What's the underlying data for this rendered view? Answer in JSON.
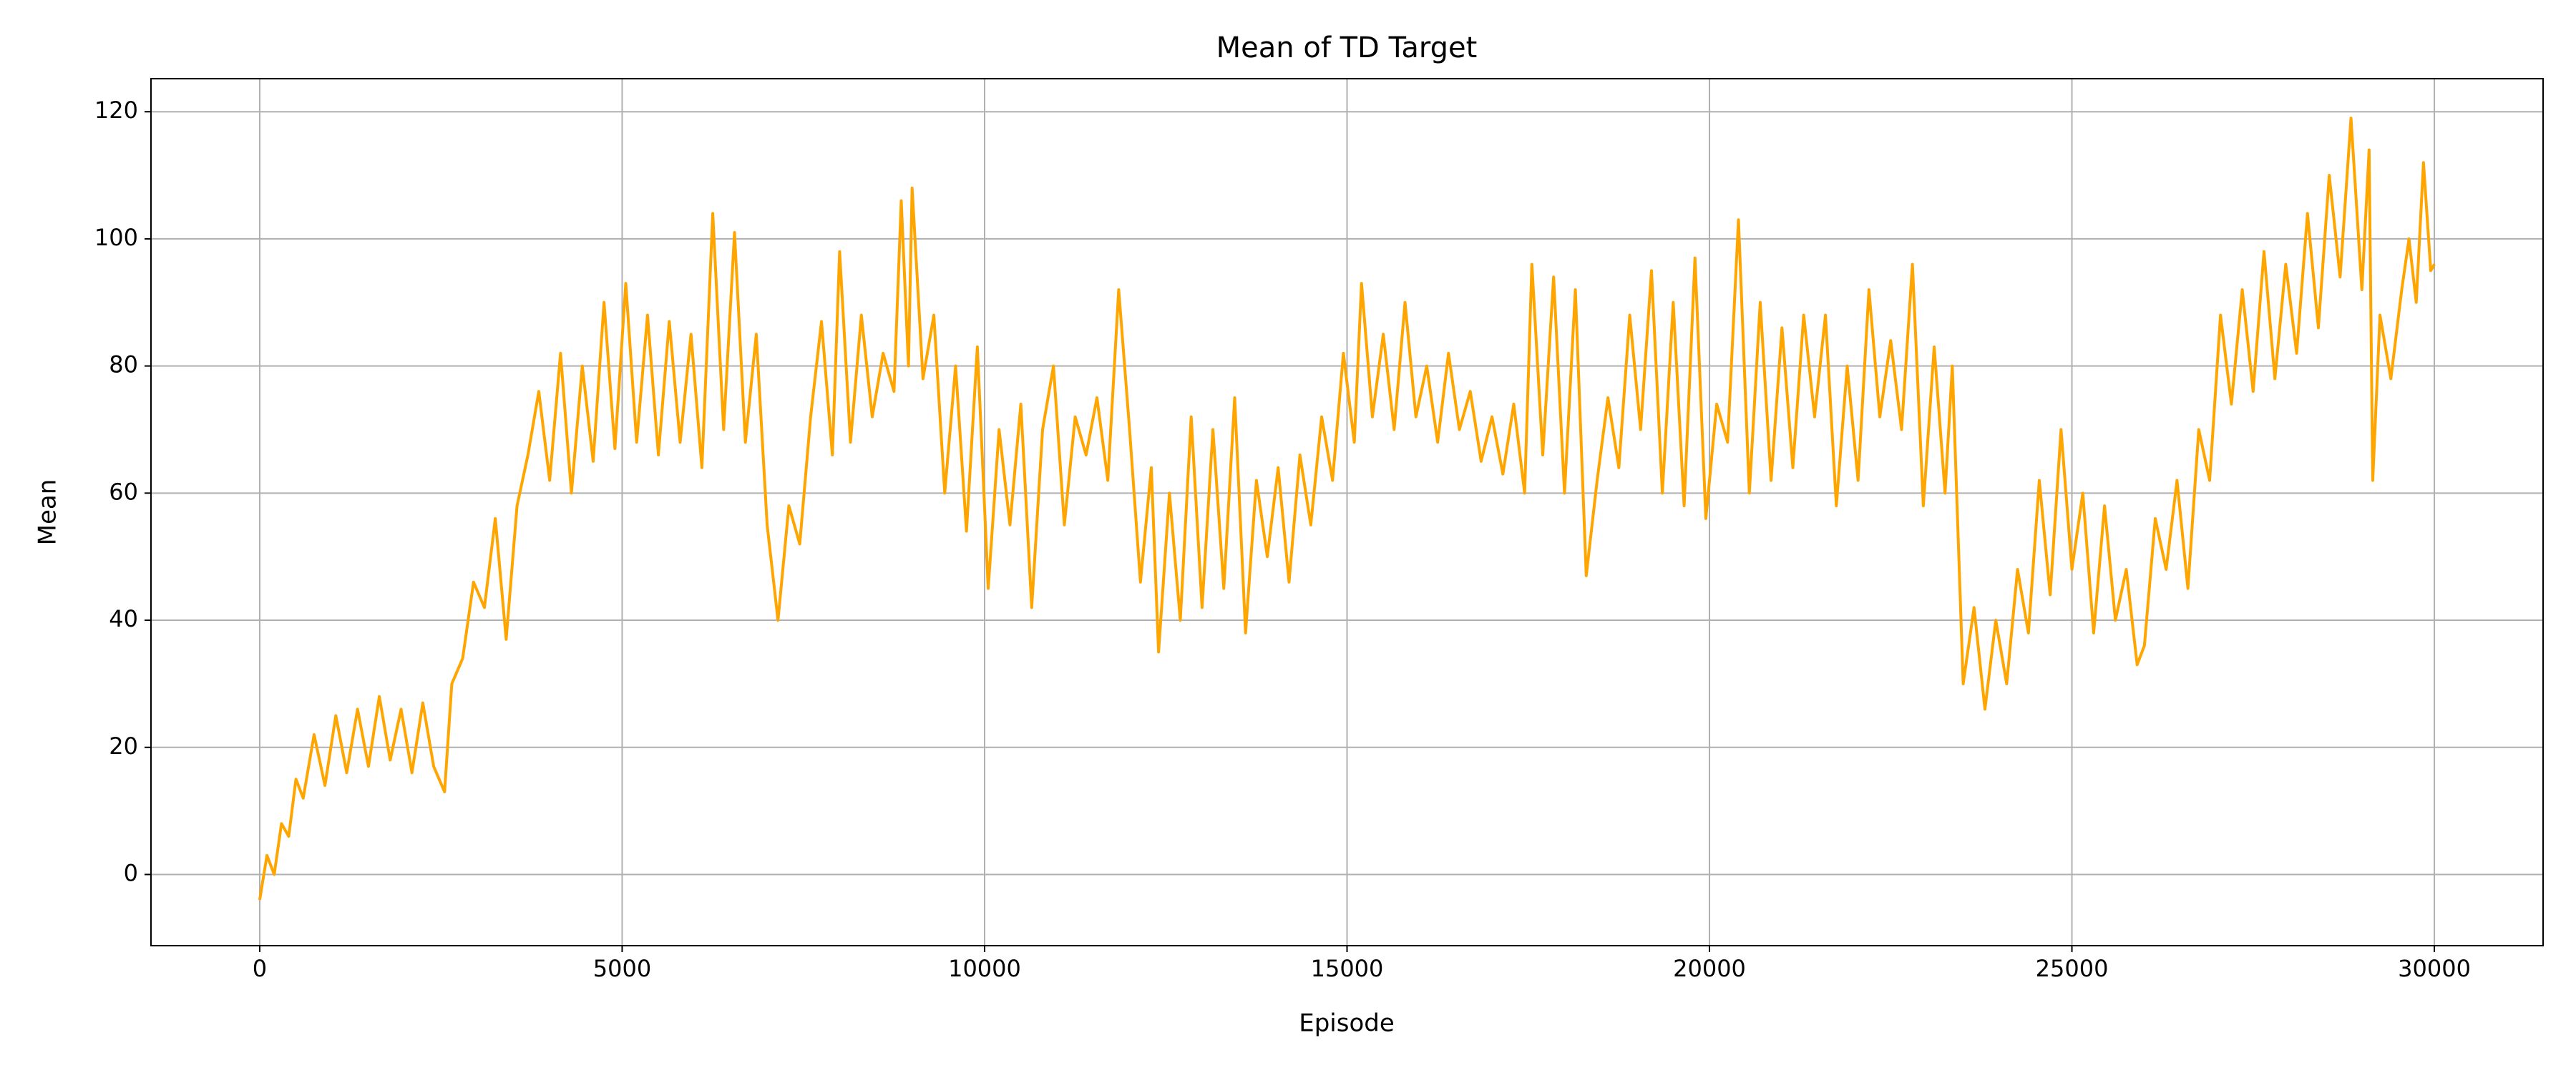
{
  "chart_data": {
    "type": "line",
    "title": "Mean of TD Target",
    "x_label": "Episode",
    "y_label": "Mean",
    "color": "#ffa500",
    "grid": true,
    "xlim": [
      -1500,
      31500
    ],
    "ylim": [
      -11.2,
      125.2
    ],
    "xticks": [
      0,
      5000,
      10000,
      15000,
      20000,
      25000,
      30000
    ],
    "yticks": [
      0,
      20,
      40,
      60,
      80,
      100,
      120
    ],
    "x": [
      0,
      100,
      200,
      300,
      400,
      500,
      600,
      750,
      900,
      1050,
      1200,
      1350,
      1500,
      1650,
      1800,
      1950,
      2100,
      2250,
      2400,
      2550,
      2650,
      2800,
      2950,
      3100,
      3250,
      3400,
      3550,
      3700,
      3850,
      4000,
      4150,
      4300,
      4450,
      4600,
      4750,
      4900,
      5050,
      5200,
      5350,
      5500,
      5650,
      5800,
      5950,
      6100,
      6250,
      6400,
      6550,
      6700,
      6850,
      7000,
      7150,
      7300,
      7450,
      7600,
      7750,
      7900,
      8000,
      8150,
      8300,
      8450,
      8600,
      8750,
      8850,
      8950,
      9000,
      9150,
      9300,
      9450,
      9600,
      9750,
      9900,
      10050,
      10200,
      10350,
      10500,
      10650,
      10800,
      10950,
      11100,
      11250,
      11400,
      11550,
      11700,
      11850,
      12000,
      12150,
      12300,
      12400,
      12550,
      12700,
      12850,
      13000,
      13150,
      13300,
      13450,
      13600,
      13750,
      13900,
      14050,
      14200,
      14350,
      14500,
      14650,
      14800,
      14950,
      15100,
      15200,
      15350,
      15500,
      15650,
      15800,
      15950,
      16100,
      16250,
      16400,
      16550,
      16700,
      16850,
      17000,
      17150,
      17300,
      17450,
      17550,
      17700,
      17850,
      18000,
      18150,
      18300,
      18450,
      18600,
      18750,
      18900,
      19050,
      19200,
      19350,
      19500,
      19650,
      19800,
      19950,
      20100,
      20250,
      20400,
      20550,
      20700,
      20850,
      21000,
      21150,
      21300,
      21450,
      21600,
      21750,
      21900,
      22050,
      22200,
      22350,
      22500,
      22650,
      22800,
      22950,
      23100,
      23250,
      23350,
      23500,
      23650,
      23800,
      23950,
      24100,
      24250,
      24400,
      24550,
      24700,
      24850,
      25000,
      25150,
      25300,
      25450,
      25600,
      25750,
      25900,
      26000,
      26150,
      26300,
      26450,
      26600,
      26750,
      26900,
      27050,
      27200,
      27350,
      27500,
      27650,
      27800,
      27950,
      28100,
      28250,
      28400,
      28550,
      28700,
      28850,
      29000,
      29100,
      29150,
      29250,
      29400,
      29550,
      29650,
      29750,
      29850,
      29950,
      30000
    ],
    "values": [
      -4,
      3,
      0,
      8,
      6,
      15,
      12,
      22,
      14,
      25,
      16,
      26,
      17,
      28,
      18,
      26,
      16,
      27,
      17,
      13,
      30,
      34,
      46,
      42,
      56,
      37,
      58,
      66,
      76,
      62,
      82,
      60,
      80,
      65,
      90,
      67,
      93,
      68,
      88,
      66,
      87,
      68,
      85,
      64,
      104,
      70,
      101,
      68,
      85,
      55,
      40,
      58,
      52,
      72,
      87,
      66,
      98,
      68,
      88,
      72,
      82,
      76,
      106,
      80,
      108,
      78,
      88,
      60,
      80,
      54,
      83,
      45,
      70,
      55,
      74,
      42,
      70,
      80,
      55,
      72,
      66,
      75,
      62,
      92,
      70,
      46,
      64,
      35,
      60,
      40,
      72,
      42,
      70,
      45,
      75,
      38,
      62,
      50,
      64,
      46,
      66,
      55,
      72,
      62,
      82,
      68,
      93,
      72,
      85,
      70,
      90,
      72,
      80,
      68,
      82,
      70,
      76,
      65,
      72,
      63,
      74,
      60,
      96,
      66,
      94,
      60,
      92,
      47,
      62,
      75,
      64,
      88,
      70,
      95,
      60,
      90,
      58,
      97,
      56,
      74,
      68,
      103,
      60,
      90,
      62,
      86,
      64,
      88,
      72,
      88,
      58,
      80,
      62,
      92,
      72,
      84,
      70,
      96,
      58,
      83,
      60,
      80,
      30,
      42,
      26,
      40,
      30,
      48,
      38,
      62,
      44,
      70,
      48,
      60,
      38,
      58,
      40,
      48,
      33,
      36,
      56,
      48,
      62,
      45,
      70,
      62,
      88,
      74,
      92,
      76,
      98,
      78,
      96,
      82,
      104,
      86,
      110,
      94,
      119,
      92,
      114,
      62,
      88,
      78,
      92,
      100,
      90,
      112,
      95,
      96
    ]
  }
}
